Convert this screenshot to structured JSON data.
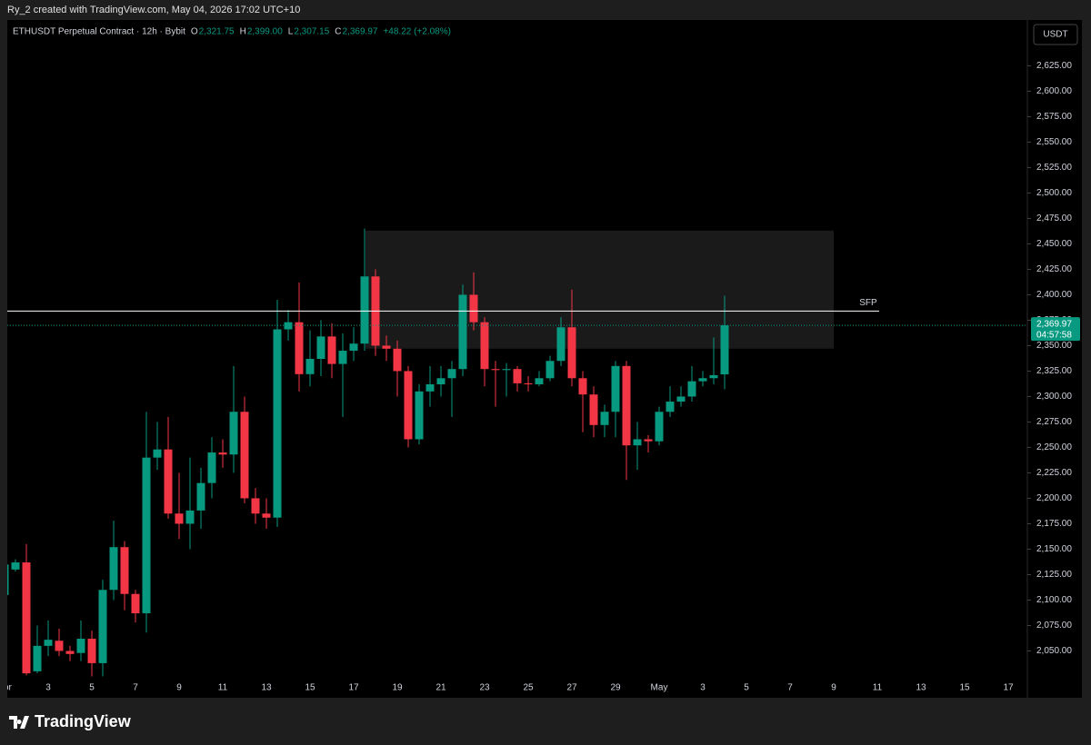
{
  "header": {
    "credit": "Ry_2 created with TradingView.com, May 04, 2026 17:02 UTC+10"
  },
  "legend": {
    "symbol": "ETHUSDT Perpetual Contract · 12h · Bybit",
    "o_key": "O",
    "o": "2,321.75",
    "h_key": "H",
    "h": "2,399.00",
    "l_key": "L",
    "l": "2,307.15",
    "c_key": "C",
    "c": "2,369.97",
    "change": "+48.22 (+2.08%)"
  },
  "currency_button": "USDT",
  "footer": {
    "logo": "TradingView"
  },
  "chart_data": {
    "type": "candlestick",
    "up_color": "#089981",
    "down_color": "#f23645",
    "open": [
      2105,
      2130,
      2137,
      2030,
      2055,
      2060,
      2050,
      2048,
      2062,
      2038,
      2110,
      2152,
      2106,
      2087,
      2240,
      2248,
      2185,
      2175,
      2188,
      2215,
      2245,
      2243,
      2285,
      2200,
      2185,
      2181,
      2366,
      2373,
      2322,
      2337,
      2359,
      2332,
      2345,
      2352,
      2418,
      2350,
      2347,
      2325,
      2258,
      2305,
      2312,
      2318,
      2327,
      2400,
      2373,
      2327,
      2326,
      2327,
      2313,
      2312,
      2318,
      2335,
      2368,
      2318,
      2302,
      2272,
      2285,
      2330,
      2252,
      2258,
      2256,
      2285,
      2295,
      2300,
      2315,
      2318,
      2321.75
    ],
    "high": [
      2140,
      2140,
      2155,
      2075,
      2080,
      2072,
      2055,
      2080,
      2070,
      2120,
      2178,
      2158,
      2110,
      2285,
      2275,
      2280,
      2225,
      2240,
      2230,
      2260,
      2258,
      2330,
      2300,
      2210,
      2200,
      2395,
      2385,
      2412,
      2365,
      2375,
      2372,
      2362,
      2368,
      2465,
      2425,
      2360,
      2355,
      2330,
      2312,
      2330,
      2330,
      2335,
      2410,
      2422,
      2378,
      2335,
      2333,
      2330,
      2320,
      2325,
      2340,
      2378,
      2405,
      2325,
      2310,
      2292,
      2335,
      2335,
      2275,
      2262,
      2290,
      2310,
      2310,
      2330,
      2325,
      2358,
      2399
    ],
    "low": [
      2100,
      2128,
      2026,
      2028,
      2045,
      2045,
      2040,
      2040,
      2025,
      2025,
      2100,
      2090,
      2078,
      2068,
      2228,
      2180,
      2160,
      2150,
      2170,
      2200,
      2230,
      2225,
      2195,
      2175,
      2170,
      2172,
      2355,
      2305,
      2310,
      2320,
      2318,
      2280,
      2335,
      2345,
      2340,
      2335,
      2300,
      2250,
      2253,
      2290,
      2300,
      2280,
      2320,
      2365,
      2310,
      2290,
      2300,
      2305,
      2305,
      2310,
      2315,
      2330,
      2310,
      2265,
      2260,
      2260,
      2260,
      2218,
      2228,
      2245,
      2252,
      2280,
      2290,
      2295,
      2310,
      2312,
      2307.15
    ],
    "close": [
      2135,
      2137,
      2028,
      2055,
      2061,
      2050,
      2047,
      2062,
      2038,
      2110,
      2152,
      2106,
      2087,
      2240,
      2248,
      2185,
      2175,
      2188,
      2215,
      2245,
      2243,
      2285,
      2200,
      2185,
      2181,
      2366,
      2373,
      2322,
      2337,
      2359,
      2332,
      2345,
      2352,
      2418,
      2350,
      2347,
      2325,
      2258,
      2305,
      2312,
      2318,
      2327,
      2400,
      2373,
      2327,
      2326,
      2327,
      2313,
      2312,
      2318,
      2335,
      2368,
      2318,
      2302,
      2272,
      2285,
      2330,
      2252,
      2258,
      2256,
      2285,
      2295,
      2300,
      2315,
      2318,
      2321,
      2369.97
    ],
    "x_labels": [
      "Apr",
      "3",
      "5",
      "7",
      "9",
      "11",
      "13",
      "15",
      "17",
      "19",
      "21",
      "23",
      "25",
      "27",
      "29",
      "May",
      "3",
      "5",
      "7",
      "9",
      "11",
      "13",
      "15",
      "17"
    ],
    "ylim": [
      2004,
      2670
    ],
    "yticks": [
      {
        "value": 2050,
        "label": "2,050.00"
      },
      {
        "value": 2075,
        "label": "2,075.00"
      },
      {
        "value": 2100,
        "label": "2,100.00"
      },
      {
        "value": 2125,
        "label": "2,125.00"
      },
      {
        "value": 2150,
        "label": "2,150.00"
      },
      {
        "value": 2175,
        "label": "2,175.00"
      },
      {
        "value": 2200,
        "label": "2,200.00"
      },
      {
        "value": 2225,
        "label": "2,225.00"
      },
      {
        "value": 2250,
        "label": "2,250.00"
      },
      {
        "value": 2275,
        "label": "2,275.00"
      },
      {
        "value": 2300,
        "label": "2,300.00"
      },
      {
        "value": 2325,
        "label": "2,325.00"
      },
      {
        "value": 2350,
        "label": "2,350.00"
      },
      {
        "value": 2375,
        "label": "2,375.00"
      },
      {
        "value": 2400,
        "label": "2,400.00"
      },
      {
        "value": 2425,
        "label": "2,425.00"
      },
      {
        "value": 2450,
        "label": "2,450.00"
      },
      {
        "value": 2475,
        "label": "2,475.00"
      },
      {
        "value": 2500,
        "label": "2,500.00"
      },
      {
        "value": 2525,
        "label": "2,525.00"
      },
      {
        "value": 2550,
        "label": "2,550.00"
      },
      {
        "value": 2575,
        "label": "2,575.00"
      },
      {
        "value": 2600,
        "label": "2,600.00"
      },
      {
        "value": 2625,
        "label": "2,625.00"
      }
    ],
    "zone": {
      "top": 2463,
      "bottom": 2347
    },
    "sfp": {
      "label": "SFP",
      "value": 2384
    },
    "last_price_label": "2,369.97",
    "countdown": "04:57:58"
  }
}
